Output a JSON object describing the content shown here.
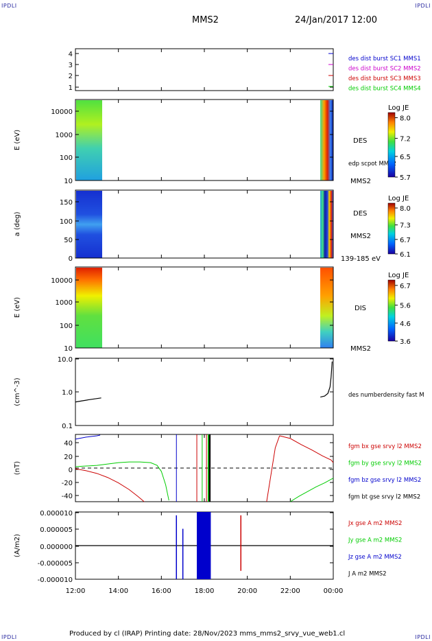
{
  "header": {
    "corner_left_top": "IPDLI",
    "corner_right_top": "IPDLI",
    "corner_left_bottom": "IPDLI",
    "corner_right_bottom": "IPDLI",
    "spacecraft": "MMS2",
    "datetime": "24/Jan/2017 12:00"
  },
  "footer": {
    "text": "Produced by cl (IRAP)   Printing date: 28/Nov/2023   mms_mms2_srvy_vue_web1.cl"
  },
  "colors": {
    "mms1": "#0000cc",
    "mms2": "#cc00cc",
    "mms3": "#cc0000",
    "mms4": "#00cc00",
    "bx": "#cc0000",
    "by": "#00cc00",
    "bz": "#0000cc",
    "bt": "#000000"
  },
  "chart_data": [
    {
      "type": "line",
      "name": "burst",
      "ytick_labels": [
        "4",
        "3",
        "2",
        "1"
      ],
      "ylim": [
        0.6,
        4.4
      ],
      "legend": [
        {
          "label": "des dist burst SC1 MMS1",
          "color": "#0000cc"
        },
        {
          "label": "des dist burst SC2 MMS2",
          "color": "#cc00cc"
        },
        {
          "label": "des dist burst SC3 MMS3",
          "color": "#cc0000"
        },
        {
          "label": "des dist burst SC4 MMS4",
          "color": "#00cc00"
        }
      ]
    },
    {
      "type": "heatmap",
      "name": "des-energy",
      "ylabel": "E (eV)",
      "yscale": "log",
      "ylim": [
        10,
        30000
      ],
      "ytick_labels": [
        "10000",
        "1000",
        "100",
        "10"
      ],
      "side_labels": [
        "DES",
        "edp scpot MMS2",
        "MMS2"
      ],
      "colorbar": {
        "title": "Log JE",
        "ticks": [
          "8.0",
          "7.2",
          "6.5",
          "5.7"
        ],
        "range": [
          5.7,
          8.2
        ]
      }
    },
    {
      "type": "heatmap",
      "name": "des-pitch",
      "ylabel": "a (deg)",
      "ylim": [
        0,
        180
      ],
      "ytick_labels": [
        "150",
        "100",
        "50",
        "0"
      ],
      "side_labels": [
        "DES",
        "MMS2",
        "139-185 eV"
      ],
      "colorbar": {
        "title": "Log JE",
        "ticks": [
          "8.0",
          "7.3",
          "6.7",
          "6.1"
        ],
        "range": [
          6.1,
          8.2
        ]
      }
    },
    {
      "type": "heatmap",
      "name": "dis-energy",
      "ylabel": "E (eV)",
      "yscale": "log",
      "ylim": [
        10,
        30000
      ],
      "ytick_labels": [
        "10000",
        "1000",
        "100",
        "10"
      ],
      "side_labels": [
        "DIS",
        "MMS2"
      ],
      "colorbar": {
        "title": "Log JE",
        "ticks": [
          "6.7",
          "5.6",
          "4.6",
          "3.6"
        ],
        "range": [
          3.6,
          7.0
        ]
      }
    },
    {
      "type": "line",
      "name": "density",
      "ylabel": "(cm^-3)",
      "yscale": "log",
      "ylim": [
        0.1,
        10
      ],
      "ytick_labels": [
        "10.0",
        "1.0",
        "0.1"
      ],
      "legend": [
        {
          "label": "des numberdensity fast M",
          "color": "#000000"
        }
      ],
      "series": [
        {
          "name": "density-early",
          "x": [
            0.0,
            0.3,
            0.6,
            0.9,
            1.2
          ],
          "values": [
            0.5,
            0.54,
            0.58,
            0.62,
            0.66
          ]
        },
        {
          "name": "density-late",
          "x": [
            11.4,
            11.6,
            11.75,
            11.85,
            11.9,
            11.95
          ],
          "values": [
            0.7,
            0.75,
            0.9,
            1.4,
            2.8,
            8.0
          ]
        }
      ]
    },
    {
      "type": "line",
      "name": "fgm",
      "ylabel": "(nT)",
      "ylim": [
        -50,
        50
      ],
      "ytick_labels": [
        "40",
        "20",
        "0",
        "-20",
        "-40"
      ],
      "legend": [
        {
          "label": "fgm bx gse srvy l2 MMS2",
          "color": "#cc0000"
        },
        {
          "label": "fgm by gse srvy l2 MMS2",
          "color": "#00cc00"
        },
        {
          "label": "fgm bz gse srvy l2 MMS2",
          "color": "#0000cc"
        },
        {
          "label": "fgm bt gse srvy l2 MMS2",
          "color": "#000000"
        }
      ],
      "series": [
        {
          "name": "bx-a",
          "x": [
            0.0,
            0.5,
            1.0,
            1.5,
            2.0,
            2.5,
            2.9,
            3.2
          ],
          "values": [
            -1,
            -4,
            -8,
            -14,
            -22,
            -32,
            -42,
            -50
          ]
        },
        {
          "name": "bx-b",
          "x": [
            8.9,
            9.1,
            9.3,
            9.5
          ],
          "values": [
            -50,
            -10,
            30,
            48
          ]
        },
        {
          "name": "bx-c",
          "x": [
            9.5,
            10.0,
            10.5,
            11.0,
            11.5,
            11.9,
            12.0
          ],
          "values": [
            48,
            44,
            35,
            27,
            18,
            12,
            8
          ]
        },
        {
          "name": "by-a",
          "x": [
            0.0,
            0.5,
            1.0,
            1.5,
            2.0,
            2.5,
            3.0,
            3.5,
            3.8,
            4.0,
            4.2,
            4.35
          ],
          "values": [
            2,
            3,
            4,
            6,
            8,
            9,
            9,
            8,
            4,
            -5,
            -25,
            -48
          ]
        },
        {
          "name": "by-b",
          "x": [
            10.0,
            10.4,
            10.8,
            11.2,
            11.6,
            12.0
          ],
          "values": [
            -50,
            -42,
            -35,
            -28,
            -22,
            -15
          ]
        },
        {
          "name": "bz-a",
          "x": [
            0.0,
            0.5,
            1.0,
            1.15
          ],
          "values": [
            43,
            46,
            48,
            49
          ]
        }
      ],
      "vlines": [
        {
          "x": 4.7,
          "color": "#0000cc"
        },
        {
          "x": 5.65,
          "color": "#cc0000"
        },
        {
          "x": 5.9,
          "color": "#00cc00"
        },
        {
          "x": 6.1,
          "color": "#cc0000"
        },
        {
          "x": 6.2,
          "color": "#00cc00"
        },
        {
          "x": 6.25,
          "color": "#000000"
        }
      ],
      "hline": 0
    },
    {
      "type": "line",
      "name": "current",
      "ylabel": "(A/m2)",
      "ylim": [
        -1e-05,
        1e-05
      ],
      "ytick_labels": [
        "0.000010",
        "0.000005",
        "0.000000",
        "-0.000005",
        "-0.000010"
      ],
      "legend": [
        {
          "label": "Jx gse A m2 MMS2",
          "color": "#cc0000"
        },
        {
          "label": "Jy gse A m2 MMS2",
          "color": "#00cc00"
        },
        {
          "label": "Jz gse A m2 MMS2",
          "color": "#0000cc"
        },
        {
          "label": "J A m2 MMS2",
          "color": "#000000"
        }
      ],
      "spikes": [
        {
          "x": 4.7,
          "max": 9e-06,
          "min": -1e-05,
          "color": "#0000cc"
        },
        {
          "x": 5.0,
          "max": 5e-06,
          "min": -1e-05,
          "color": "#0000cc"
        },
        {
          "x": 7.7,
          "max": 9e-06,
          "min": -7.5e-06,
          "color": "#cc0000"
        }
      ],
      "block": {
        "x0": 5.65,
        "x1": 6.3,
        "max": 1e-05,
        "min": -1e-05,
        "color": "#0000cc"
      }
    }
  ],
  "xaxis": {
    "ticks": [
      "12:00",
      "14:00",
      "16:00",
      "18:00",
      "20:00",
      "22:00",
      "00:00"
    ],
    "xlim": [
      0,
      12
    ]
  }
}
